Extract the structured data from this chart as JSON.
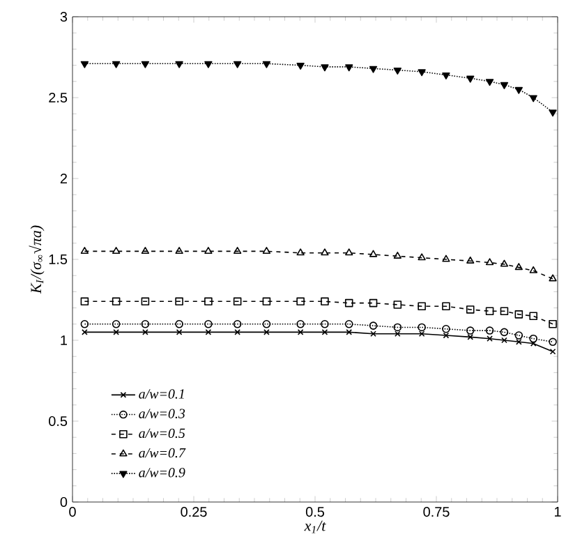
{
  "chart_data": {
    "type": "line",
    "xlabel": "x$_{1}$/t",
    "ylabel": "K$_{I}$/(σ$_{∞}$√πa)",
    "x": [
      0.025,
      0.09,
      0.15,
      0.22,
      0.28,
      0.34,
      0.4,
      0.47,
      0.52,
      0.57,
      0.62,
      0.67,
      0.72,
      0.77,
      0.82,
      0.86,
      0.89,
      0.92,
      0.95,
      0.99
    ],
    "series": [
      {
        "name": "a/w=0.1",
        "color": "#000000",
        "marker": "cross",
        "line_style": "solid",
        "values": [
          1.05,
          1.05,
          1.05,
          1.05,
          1.05,
          1.05,
          1.05,
          1.05,
          1.05,
          1.05,
          1.04,
          1.04,
          1.04,
          1.03,
          1.02,
          1.01,
          1.0,
          0.99,
          0.98,
          0.93
        ]
      },
      {
        "name": "a/w=0.3",
        "color": "#000000",
        "marker": "circle",
        "line_style": "dotted",
        "values": [
          1.1,
          1.1,
          1.1,
          1.1,
          1.1,
          1.1,
          1.1,
          1.1,
          1.1,
          1.1,
          1.09,
          1.08,
          1.08,
          1.07,
          1.06,
          1.06,
          1.05,
          1.03,
          1.01,
          0.99
        ]
      },
      {
        "name": "a/w=0.5",
        "color": "#000000",
        "marker": "square",
        "line_style": "dashed",
        "values": [
          1.24,
          1.24,
          1.24,
          1.24,
          1.24,
          1.24,
          1.24,
          1.24,
          1.24,
          1.23,
          1.23,
          1.22,
          1.21,
          1.21,
          1.19,
          1.18,
          1.18,
          1.16,
          1.15,
          1.1
        ]
      },
      {
        "name": "a/w=0.7",
        "color": "#000000",
        "marker": "triangle",
        "line_style": "dashed",
        "values": [
          1.55,
          1.55,
          1.55,
          1.55,
          1.55,
          1.55,
          1.55,
          1.54,
          1.54,
          1.54,
          1.53,
          1.52,
          1.51,
          1.5,
          1.49,
          1.48,
          1.47,
          1.45,
          1.43,
          1.38
        ]
      },
      {
        "name": "a/w=0.9",
        "color": "#000000",
        "marker": "triangle-down",
        "line_style": "dotted",
        "values": [
          2.71,
          2.71,
          2.71,
          2.71,
          2.71,
          2.71,
          2.71,
          2.7,
          2.69,
          2.69,
          2.68,
          2.67,
          2.66,
          2.64,
          2.62,
          2.6,
          2.58,
          2.55,
          2.5,
          2.41
        ]
      }
    ],
    "xlim": [
      0,
      1
    ],
    "ylim": [
      0,
      3
    ],
    "xticks": [
      0,
      0.25,
      0.5,
      0.75,
      1
    ],
    "yticks": [
      0,
      0.5,
      1,
      1.5,
      2,
      2.5,
      3
    ],
    "grid": false,
    "legend": "bottom left"
  }
}
